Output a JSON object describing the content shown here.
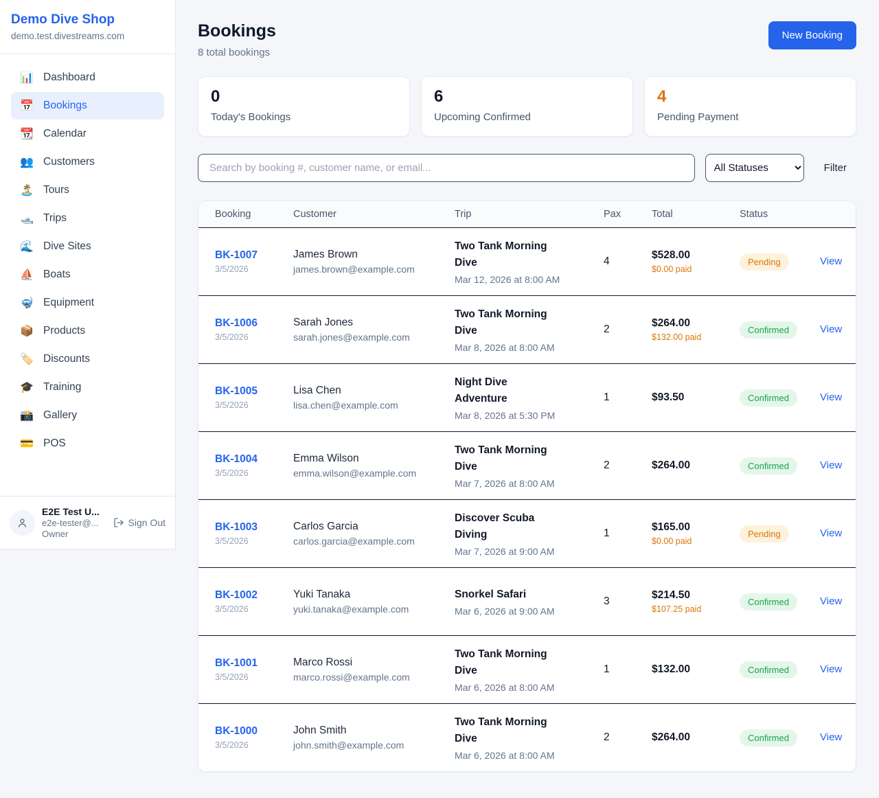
{
  "colors": {
    "accent": "#2563eb",
    "pending_text": "#d97706",
    "pending_bg": "#fdf2dd",
    "confirmed_text": "#16a34a",
    "confirmed_bg": "#e4f6ea",
    "stat_orange": "#d97706"
  },
  "sidebar": {
    "brand": "Demo Dive Shop",
    "domain": "demo.test.divestreams.com",
    "items": [
      {
        "label": "Dashboard",
        "icon": "📊",
        "icon_name": "bar-chart-icon",
        "active": false
      },
      {
        "label": "Bookings",
        "icon": "📅",
        "icon_name": "calendar-icon",
        "active": true
      },
      {
        "label": "Calendar",
        "icon": "📆",
        "icon_name": "tear-off-calendar-icon",
        "active": false
      },
      {
        "label": "Customers",
        "icon": "👥",
        "icon_name": "users-icon",
        "active": false
      },
      {
        "label": "Tours",
        "icon": "🏝️",
        "icon_name": "island-icon",
        "active": false
      },
      {
        "label": "Trips",
        "icon": "🛥️",
        "icon_name": "motorboat-icon",
        "active": false
      },
      {
        "label": "Dive Sites",
        "icon": "🌊",
        "icon_name": "wave-icon",
        "active": false
      },
      {
        "label": "Boats",
        "icon": "⛵",
        "icon_name": "sailboat-icon",
        "active": false
      },
      {
        "label": "Equipment",
        "icon": "🤿",
        "icon_name": "diving-mask-icon",
        "active": false
      },
      {
        "label": "Products",
        "icon": "📦",
        "icon_name": "package-icon",
        "active": false
      },
      {
        "label": "Discounts",
        "icon": "🏷️",
        "icon_name": "tag-icon",
        "active": false
      },
      {
        "label": "Training",
        "icon": "🎓",
        "icon_name": "graduation-cap-icon",
        "active": false
      },
      {
        "label": "Gallery",
        "icon": "📸",
        "icon_name": "camera-icon",
        "active": false
      },
      {
        "label": "POS",
        "icon": "💳",
        "icon_name": "credit-card-icon",
        "active": false
      }
    ],
    "user": {
      "name": "E2E Test U...",
      "email": "e2e-tester@...",
      "role": "Owner",
      "sign_out_label": "Sign Out"
    }
  },
  "header": {
    "title": "Bookings",
    "subtitle": "8 total bookings",
    "new_booking_label": "New Booking"
  },
  "stats": [
    {
      "value": "0",
      "label": "Today's Bookings",
      "orange": false
    },
    {
      "value": "6",
      "label": "Upcoming Confirmed",
      "orange": false
    },
    {
      "value": "4",
      "label": "Pending Payment",
      "orange": true
    }
  ],
  "filters": {
    "search_placeholder": "Search by booking #, customer name, or email...",
    "status_selected": "All Statuses",
    "filter_label": "Filter"
  },
  "table": {
    "columns": [
      "Booking",
      "Customer",
      "Trip",
      "Pax",
      "Total",
      "Status",
      ""
    ],
    "rows": [
      {
        "id": "BK-1007",
        "date": "3/5/2026",
        "customer": "James Brown",
        "email": "james.brown@example.com",
        "trip": "Two Tank Morning Dive",
        "trip_date": "Mar 12, 2026 at 8:00 AM",
        "pax": "4",
        "total": "$528.00",
        "paid": "$0.00 paid",
        "status": "Pending",
        "action": "View"
      },
      {
        "id": "BK-1006",
        "date": "3/5/2026",
        "customer": "Sarah Jones",
        "email": "sarah.jones@example.com",
        "trip": "Two Tank Morning Dive",
        "trip_date": "Mar 8, 2026 at 8:00 AM",
        "pax": "2",
        "total": "$264.00",
        "paid": "$132.00 paid",
        "status": "Confirmed",
        "action": "View"
      },
      {
        "id": "BK-1005",
        "date": "3/5/2026",
        "customer": "Lisa Chen",
        "email": "lisa.chen@example.com",
        "trip": "Night Dive Adventure",
        "trip_date": "Mar 8, 2026 at 5:30 PM",
        "pax": "1",
        "total": "$93.50",
        "paid": "",
        "status": "Confirmed",
        "action": "View"
      },
      {
        "id": "BK-1004",
        "date": "3/5/2026",
        "customer": "Emma Wilson",
        "email": "emma.wilson@example.com",
        "trip": "Two Tank Morning Dive",
        "trip_date": "Mar 7, 2026 at 8:00 AM",
        "pax": "2",
        "total": "$264.00",
        "paid": "",
        "status": "Confirmed",
        "action": "View"
      },
      {
        "id": "BK-1003",
        "date": "3/5/2026",
        "customer": "Carlos Garcia",
        "email": "carlos.garcia@example.com",
        "trip": "Discover Scuba Diving",
        "trip_date": "Mar 7, 2026 at 9:00 AM",
        "pax": "1",
        "total": "$165.00",
        "paid": "$0.00 paid",
        "status": "Pending",
        "action": "View"
      },
      {
        "id": "BK-1002",
        "date": "3/5/2026",
        "customer": "Yuki Tanaka",
        "email": "yuki.tanaka@example.com",
        "trip": "Snorkel Safari",
        "trip_date": "Mar 6, 2026 at 9:00 AM",
        "pax": "3",
        "total": "$214.50",
        "paid": "$107.25 paid",
        "status": "Confirmed",
        "action": "View"
      },
      {
        "id": "BK-1001",
        "date": "3/5/2026",
        "customer": "Marco Rossi",
        "email": "marco.rossi@example.com",
        "trip": "Two Tank Morning Dive",
        "trip_date": "Mar 6, 2026 at 8:00 AM",
        "pax": "1",
        "total": "$132.00",
        "paid": "",
        "status": "Confirmed",
        "action": "View"
      },
      {
        "id": "BK-1000",
        "date": "3/5/2026",
        "customer": "John Smith",
        "email": "john.smith@example.com",
        "trip": "Two Tank Morning Dive",
        "trip_date": "Mar 6, 2026 at 8:00 AM",
        "pax": "2",
        "total": "$264.00",
        "paid": "",
        "status": "Confirmed",
        "action": "View"
      }
    ]
  }
}
